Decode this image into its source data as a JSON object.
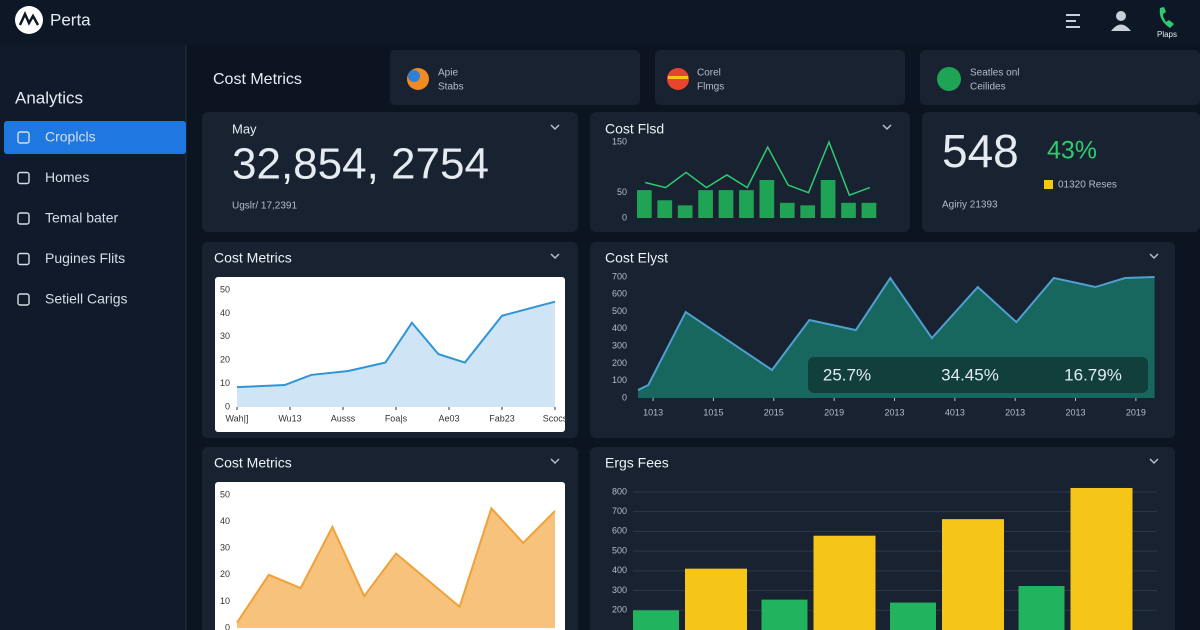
{
  "header": {
    "brand": "Perta",
    "user_label": "Plaps"
  },
  "sidebar": {
    "title": "Analytics",
    "items": [
      "Croplcls",
      "Homes",
      "Temal bater",
      "Pugines Flits",
      "Setiell Carigs"
    ]
  },
  "tabs": {
    "title": "Cost Metrics",
    "items": [
      {
        "title": "Apie",
        "subtitle": "Stabs"
      },
      {
        "title": "Corel",
        "subtitle": "Flmgs"
      },
      {
        "title": "Seatles onl",
        "subtitle": "Ceilides"
      }
    ]
  },
  "kpi_main": {
    "label": "May",
    "value": "32,854, 2754",
    "note": "Ugslr/ 17,2391"
  },
  "kpi_side": {
    "value": "548",
    "change": "43%",
    "legend": "01320 Reses",
    "note": "Agiriy 21393"
  },
  "stats": [
    "25.7%",
    "34.45%",
    "16.79%"
  ],
  "charts": [
    {
      "type": "bar",
      "title": "Cost Flsd",
      "values": [
        55,
        35,
        25,
        55,
        55,
        55,
        75,
        30,
        25,
        75,
        30,
        30
      ],
      "line": [
        70,
        60,
        90,
        60,
        85,
        60,
        140,
        65,
        50,
        150,
        45,
        60
      ],
      "color": "#1fa455",
      "line_color": "#2ecc71",
      "ylim": [
        0,
        150
      ],
      "yticks": [
        0,
        50,
        150
      ]
    },
    {
      "type": "area",
      "title": "Cost Metrics",
      "x": [
        0,
        0.9,
        1.4,
        2.1,
        2.8,
        3.3,
        3.8,
        4.3,
        5,
        6
      ],
      "values": [
        8.5,
        9.4,
        13.7,
        15.4,
        19,
        36,
        22.6,
        19,
        39,
        45
      ],
      "color": "#2f95d6",
      "fill": "#cfe5f6",
      "xlim": [
        0,
        6
      ],
      "xticks": [
        {
          "value": 0,
          "label": "Wah|]"
        },
        {
          "value": 1,
          "label": "Wu13"
        },
        {
          "value": 2,
          "label": "Ausss"
        },
        {
          "value": 3,
          "label": "Foa|s"
        },
        {
          "value": 4,
          "label": "Ae03"
        },
        {
          "value": 5,
          "label": "Fab23"
        },
        {
          "value": 6,
          "label": "Scocs"
        }
      ],
      "ylim": [
        0,
        50
      ],
      "yticks": [
        0,
        10,
        20,
        30,
        40,
        50
      ]
    },
    {
      "type": "area",
      "title": "Cost Elyst",
      "x": [
        -0.25,
        -0.08,
        0.54,
        1.97,
        2.59,
        3.36,
        3.93,
        4.62,
        5.38,
        6.02,
        6.64,
        7.33,
        7.82,
        8.31
      ],
      "values": [
        46,
        75,
        497,
        162,
        451,
        393,
        694,
        347,
        642,
        439,
        694,
        642,
        694,
        700
      ],
      "color": "#4f9fd0",
      "fill": "#17675f",
      "xlim": [
        -0.3,
        8.35
      ],
      "xticks": [
        {
          "value": 0,
          "label": "1013"
        },
        {
          "value": 1,
          "label": "1015"
        },
        {
          "value": 2,
          "label": "2015"
        },
        {
          "value": 3,
          "label": "2019"
        },
        {
          "value": 4,
          "label": "2013"
        },
        {
          "value": 5,
          "label": "4013"
        },
        {
          "value": 6,
          "label": "2013"
        },
        {
          "value": 7,
          "label": "2013"
        },
        {
          "value": 8,
          "label": "2019"
        }
      ],
      "ylim": [
        0,
        700
      ],
      "yticks": [
        0,
        100,
        200,
        300,
        400,
        500,
        600,
        700
      ]
    },
    {
      "type": "area",
      "title": "Cost Metrics",
      "x": [
        0,
        1,
        2,
        3,
        4,
        5,
        6,
        7,
        8,
        9,
        10
      ],
      "values": [
        2,
        20,
        15,
        38,
        12,
        28,
        18,
        8,
        45,
        32,
        44
      ],
      "color": "#f0a23a",
      "fill": "#f6c27c",
      "xlim": [
        0,
        10
      ],
      "ylim": [
        0,
        50
      ],
      "yticks": [
        0,
        10,
        20,
        30,
        40,
        50
      ]
    },
    {
      "type": "grouped_bar",
      "title": "Ergs Fees",
      "series": [
        {
          "color": "#22b35e",
          "values": [
            200,
            254,
            239,
            323
          ]
        },
        {
          "color": "#f5c518",
          "values": [
            411,
            578,
            662,
            820
          ]
        }
      ],
      "ylim": [
        100,
        830
      ],
      "yticks": [
        200,
        300,
        400,
        500,
        600,
        700,
        800
      ]
    }
  ]
}
